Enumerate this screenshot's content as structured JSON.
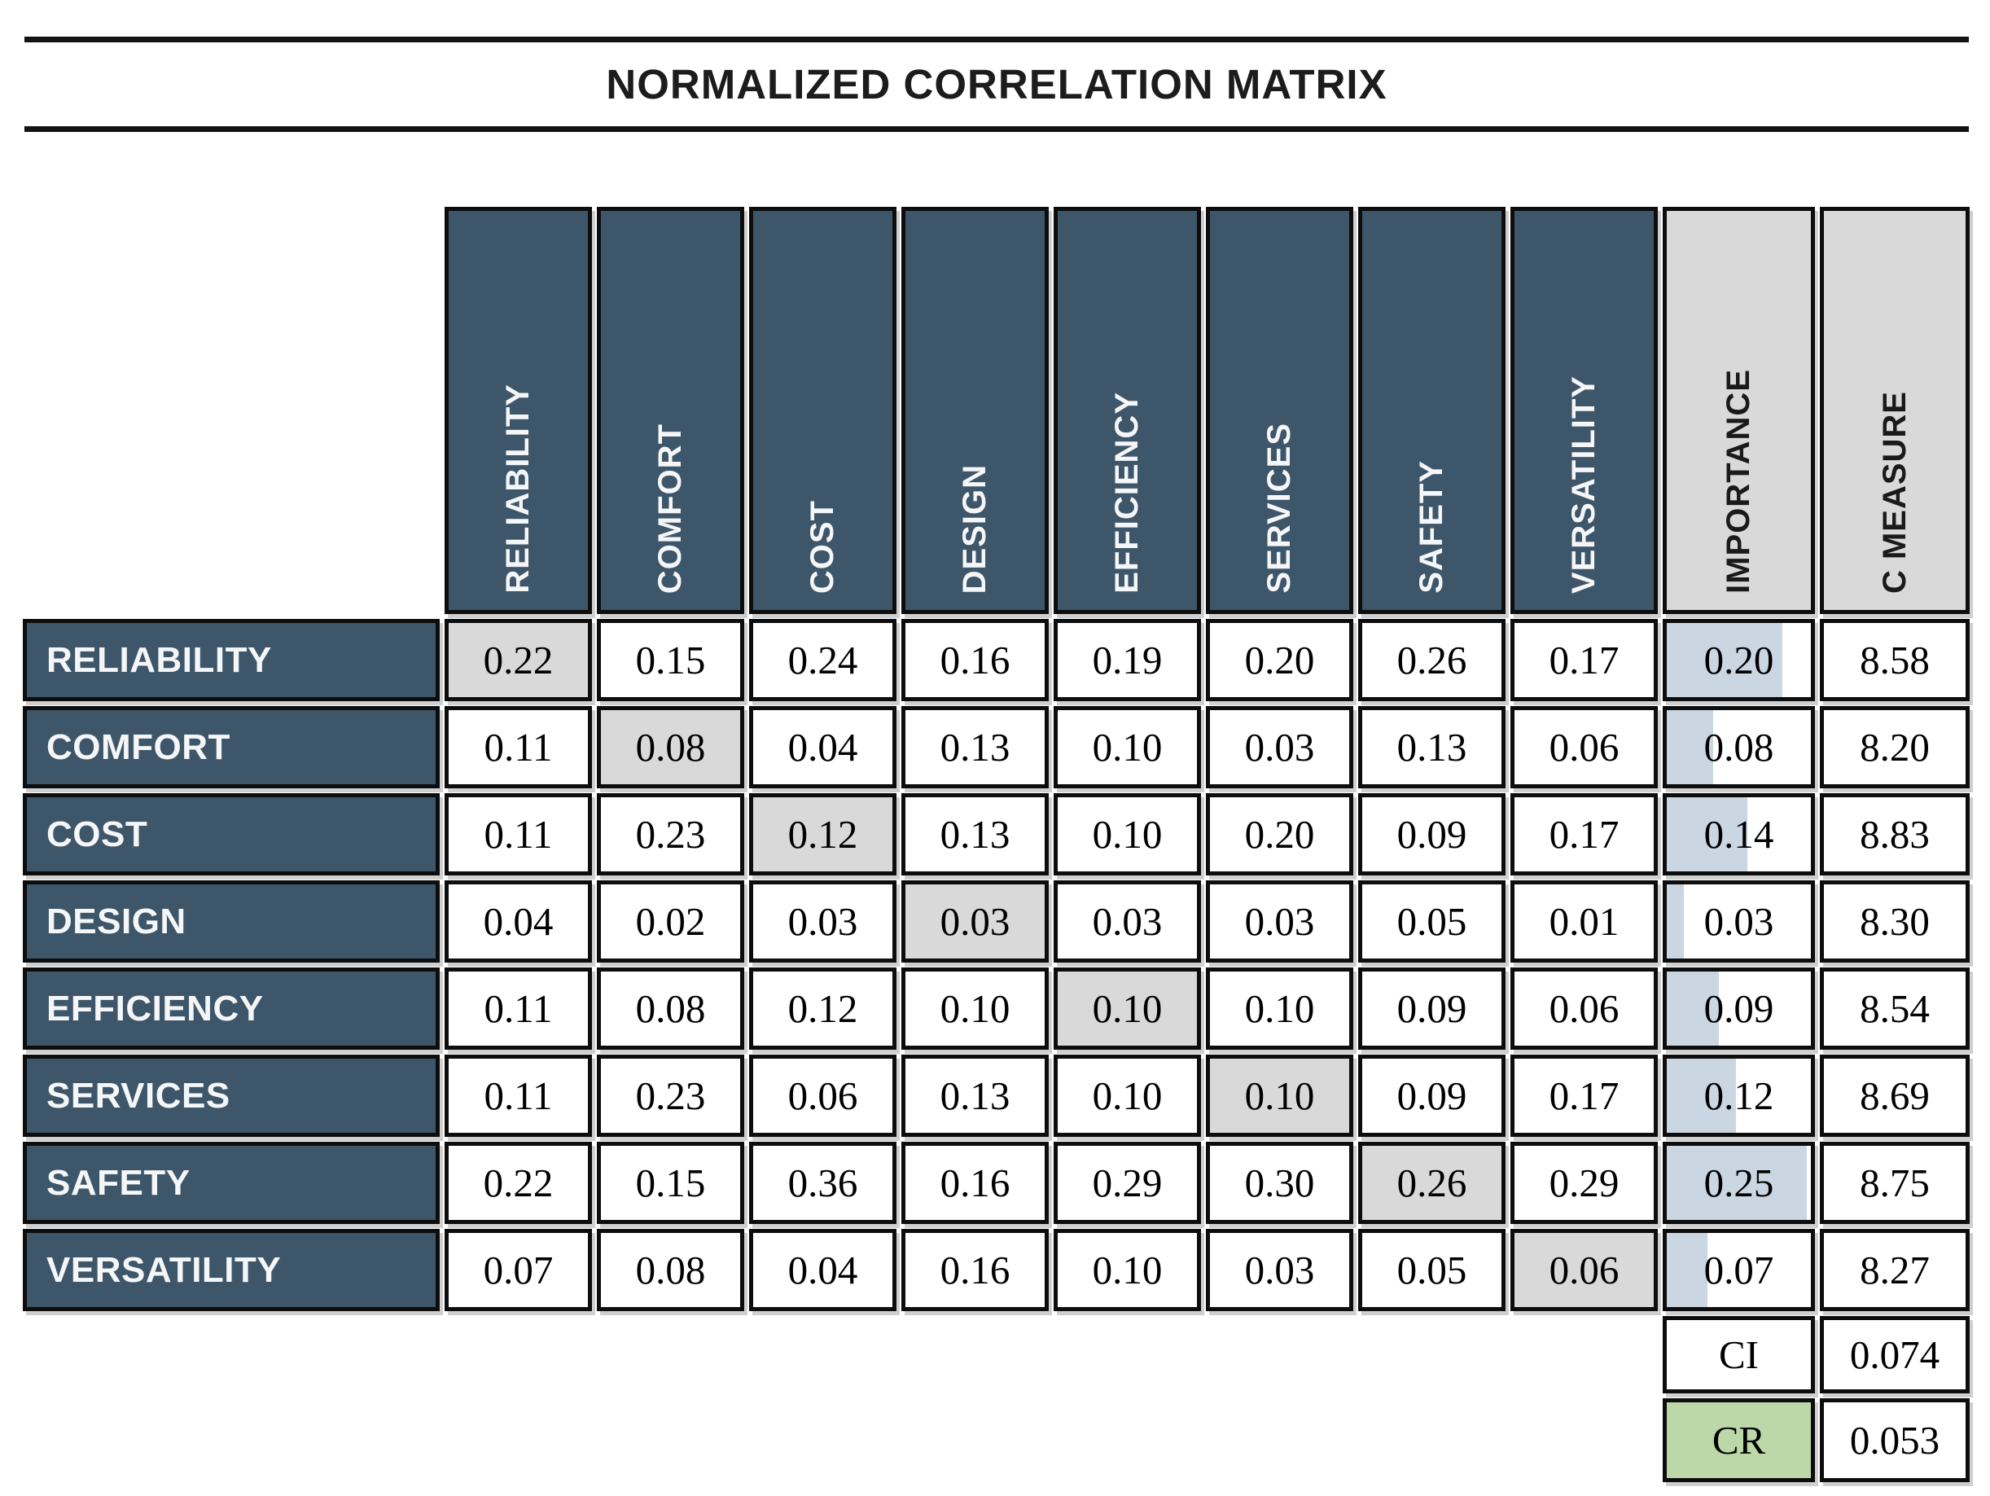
{
  "title": "NORMALIZED CORRELATION MATRIX",
  "colors": {
    "header_blue": "#3E5669",
    "header_gray": "#D9D9D9",
    "diagonal_gray": "#D9D9D9",
    "importance_bar_blue": "#CBD6E3",
    "cr_green": "#BCD8A8",
    "border_black": "#0D0D0D"
  },
  "matrix": {
    "criteria": [
      "RELIABILITY",
      "COMFORT",
      "COST",
      "DESIGN",
      "EFFICIENCY",
      "SERVICES",
      "SAFETY",
      "VERSATILITY"
    ],
    "extra_columns": [
      "IMPORTANCE",
      "C MEASURE"
    ],
    "rows": [
      {
        "label": "RELIABILITY",
        "values": [
          "0.22",
          "0.15",
          "0.24",
          "0.16",
          "0.19",
          "0.20",
          "0.26",
          "0.17"
        ],
        "importance": "0.20",
        "importance_bar_pct": 80,
        "c_measure": "8.58"
      },
      {
        "label": "COMFORT",
        "values": [
          "0.11",
          "0.08",
          "0.04",
          "0.13",
          "0.10",
          "0.03",
          "0.13",
          "0.06"
        ],
        "importance": "0.08",
        "importance_bar_pct": 32,
        "c_measure": "8.20"
      },
      {
        "label": "COST",
        "values": [
          "0.11",
          "0.23",
          "0.12",
          "0.13",
          "0.10",
          "0.20",
          "0.09",
          "0.17"
        ],
        "importance": "0.14",
        "importance_bar_pct": 56,
        "c_measure": "8.83"
      },
      {
        "label": "DESIGN",
        "values": [
          "0.04",
          "0.02",
          "0.03",
          "0.03",
          "0.03",
          "0.03",
          "0.05",
          "0.01"
        ],
        "importance": "0.03",
        "importance_bar_pct": 12,
        "c_measure": "8.30"
      },
      {
        "label": "EFFICIENCY",
        "values": [
          "0.11",
          "0.08",
          "0.12",
          "0.10",
          "0.10",
          "0.10",
          "0.09",
          "0.06"
        ],
        "importance": "0.09",
        "importance_bar_pct": 36,
        "c_measure": "8.54"
      },
      {
        "label": "SERVICES",
        "values": [
          "0.11",
          "0.23",
          "0.06",
          "0.13",
          "0.10",
          "0.10",
          "0.09",
          "0.17"
        ],
        "importance": "0.12",
        "importance_bar_pct": 48,
        "c_measure": "8.69"
      },
      {
        "label": "SAFETY",
        "values": [
          "0.22",
          "0.15",
          "0.36",
          "0.16",
          "0.29",
          "0.30",
          "0.26",
          "0.29"
        ],
        "importance": "0.25",
        "importance_bar_pct": 97,
        "c_measure": "8.75"
      },
      {
        "label": "VERSATILITY",
        "values": [
          "0.07",
          "0.08",
          "0.04",
          "0.16",
          "0.10",
          "0.03",
          "0.05",
          "0.06"
        ],
        "importance": "0.07",
        "importance_bar_pct": 28,
        "c_measure": "8.27"
      }
    ],
    "summary": [
      {
        "label": "CI",
        "value": "0.074",
        "highlight": false
      },
      {
        "label": "CR",
        "value": "0.053",
        "highlight": true
      }
    ]
  },
  "chart_data": {
    "type": "table",
    "title": "NORMALIZED CORRELATION MATRIX",
    "row_labels": [
      "RELIABILITY",
      "COMFORT",
      "COST",
      "DESIGN",
      "EFFICIENCY",
      "SERVICES",
      "SAFETY",
      "VERSATILITY"
    ],
    "column_labels": [
      "RELIABILITY",
      "COMFORT",
      "COST",
      "DESIGN",
      "EFFICIENCY",
      "SERVICES",
      "SAFETY",
      "VERSATILITY",
      "IMPORTANCE",
      "C MEASURE"
    ],
    "matrix": [
      [
        0.22,
        0.15,
        0.24,
        0.16,
        0.19,
        0.2,
        0.26,
        0.17
      ],
      [
        0.11,
        0.08,
        0.04,
        0.13,
        0.1,
        0.03,
        0.13,
        0.06
      ],
      [
        0.11,
        0.23,
        0.12,
        0.13,
        0.1,
        0.2,
        0.09,
        0.17
      ],
      [
        0.04,
        0.02,
        0.03,
        0.03,
        0.03,
        0.03,
        0.05,
        0.01
      ],
      [
        0.11,
        0.08,
        0.12,
        0.1,
        0.1,
        0.1,
        0.09,
        0.06
      ],
      [
        0.11,
        0.23,
        0.06,
        0.13,
        0.1,
        0.1,
        0.09,
        0.17
      ],
      [
        0.22,
        0.15,
        0.36,
        0.16,
        0.29,
        0.3,
        0.26,
        0.29
      ],
      [
        0.07,
        0.08,
        0.04,
        0.16,
        0.1,
        0.03,
        0.05,
        0.06
      ]
    ],
    "importance": [
      0.2,
      0.08,
      0.14,
      0.03,
      0.09,
      0.12,
      0.25,
      0.07
    ],
    "c_measure": [
      8.58,
      8.2,
      8.83,
      8.3,
      8.54,
      8.69,
      8.75,
      8.27
    ],
    "diagonal_highlighted": true,
    "importance_data_bars_scaled_to_max": 0.25,
    "CI": 0.074,
    "CR": 0.053
  }
}
